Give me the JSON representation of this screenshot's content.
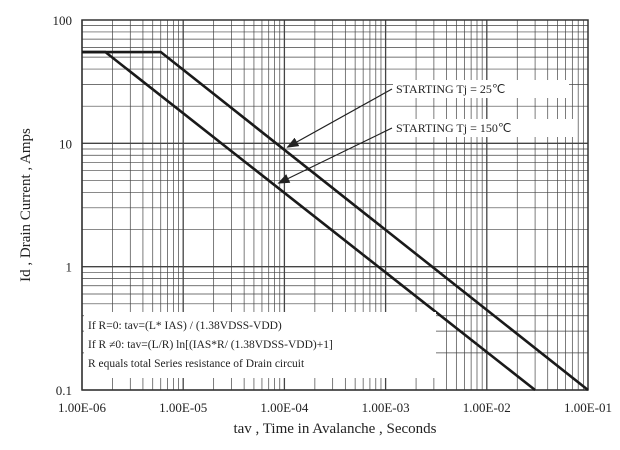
{
  "chart_data": {
    "type": "line",
    "title": "",
    "xlabel": "tav , Time in Avalanche , Seconds",
    "ylabel": "Id , Drain Current , Amps",
    "x_scale": "log",
    "y_scale": "log",
    "xlim": [
      1e-06,
      0.1
    ],
    "ylim": [
      0.1,
      100
    ],
    "x_tick_labels": [
      "1.00E-06",
      "1.00E-05",
      "1.00E-04",
      "1.00E-03",
      "1.00E-02",
      "1.00E-01"
    ],
    "x_tick_values": [
      1e-06,
      1e-05,
      0.0001,
      0.001,
      0.01,
      0.1
    ],
    "y_tick_labels": [
      "0.1",
      "1",
      "10",
      "100"
    ],
    "y_tick_values": [
      0.1,
      1,
      10,
      100
    ],
    "grid": true,
    "series": [
      {
        "name": "STARTING Tj = 25℃",
        "points": [
          [
            1e-06,
            55
          ],
          [
            6e-06,
            55
          ],
          [
            0.1,
            0.1
          ]
        ]
      },
      {
        "name": "STARTING Tj = 150℃",
        "points": [
          [
            1e-06,
            55
          ],
          [
            1.7e-06,
            55
          ],
          [
            0.03,
            0.1
          ]
        ]
      }
    ],
    "annotations": {
      "tj25": "STARTING Tj = 25℃",
      "tj150": "STARTING Tj = 150℃"
    },
    "formula_lines": [
      "If R=0: tav=(L* IAS) / (1.38VDSS-VDD)",
      "If R ≠0: tav=(L/R) ln[(IAS*R/ (1.38VDSS-VDD)+1]",
      "R equals total Series resistance of Drain circuit"
    ]
  }
}
